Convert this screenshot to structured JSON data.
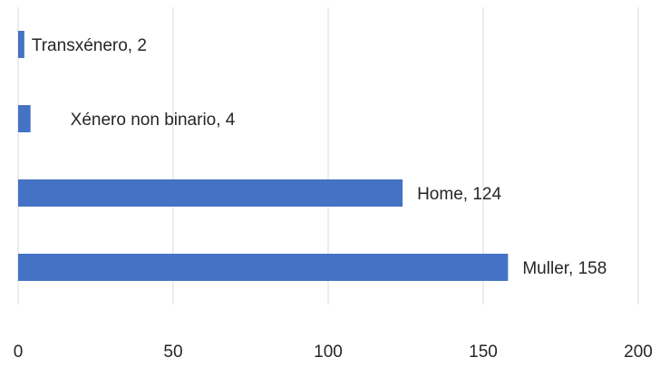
{
  "chart_data": {
    "type": "bar",
    "orientation": "horizontal",
    "title": "",
    "xlabel": "",
    "ylabel": "",
    "categories": [
      "Transxénero",
      "Xénero non binario",
      "Home",
      "Muller"
    ],
    "values": [
      2,
      4,
      124,
      158
    ],
    "data_labels": [
      "Transxénero, 2",
      "Xénero non binario, 4",
      "Home, 124",
      "Muller, 158"
    ],
    "xlim": [
      0,
      200
    ],
    "xticks": [
      0,
      50,
      100,
      150,
      200
    ],
    "xtick_labels": [
      "0",
      "50",
      "100",
      "150",
      "200"
    ],
    "grid": "vertical",
    "legend": "none",
    "colors": {
      "bar": "#4472C4",
      "grid": "#D9D9D9",
      "text": "#262626"
    }
  }
}
